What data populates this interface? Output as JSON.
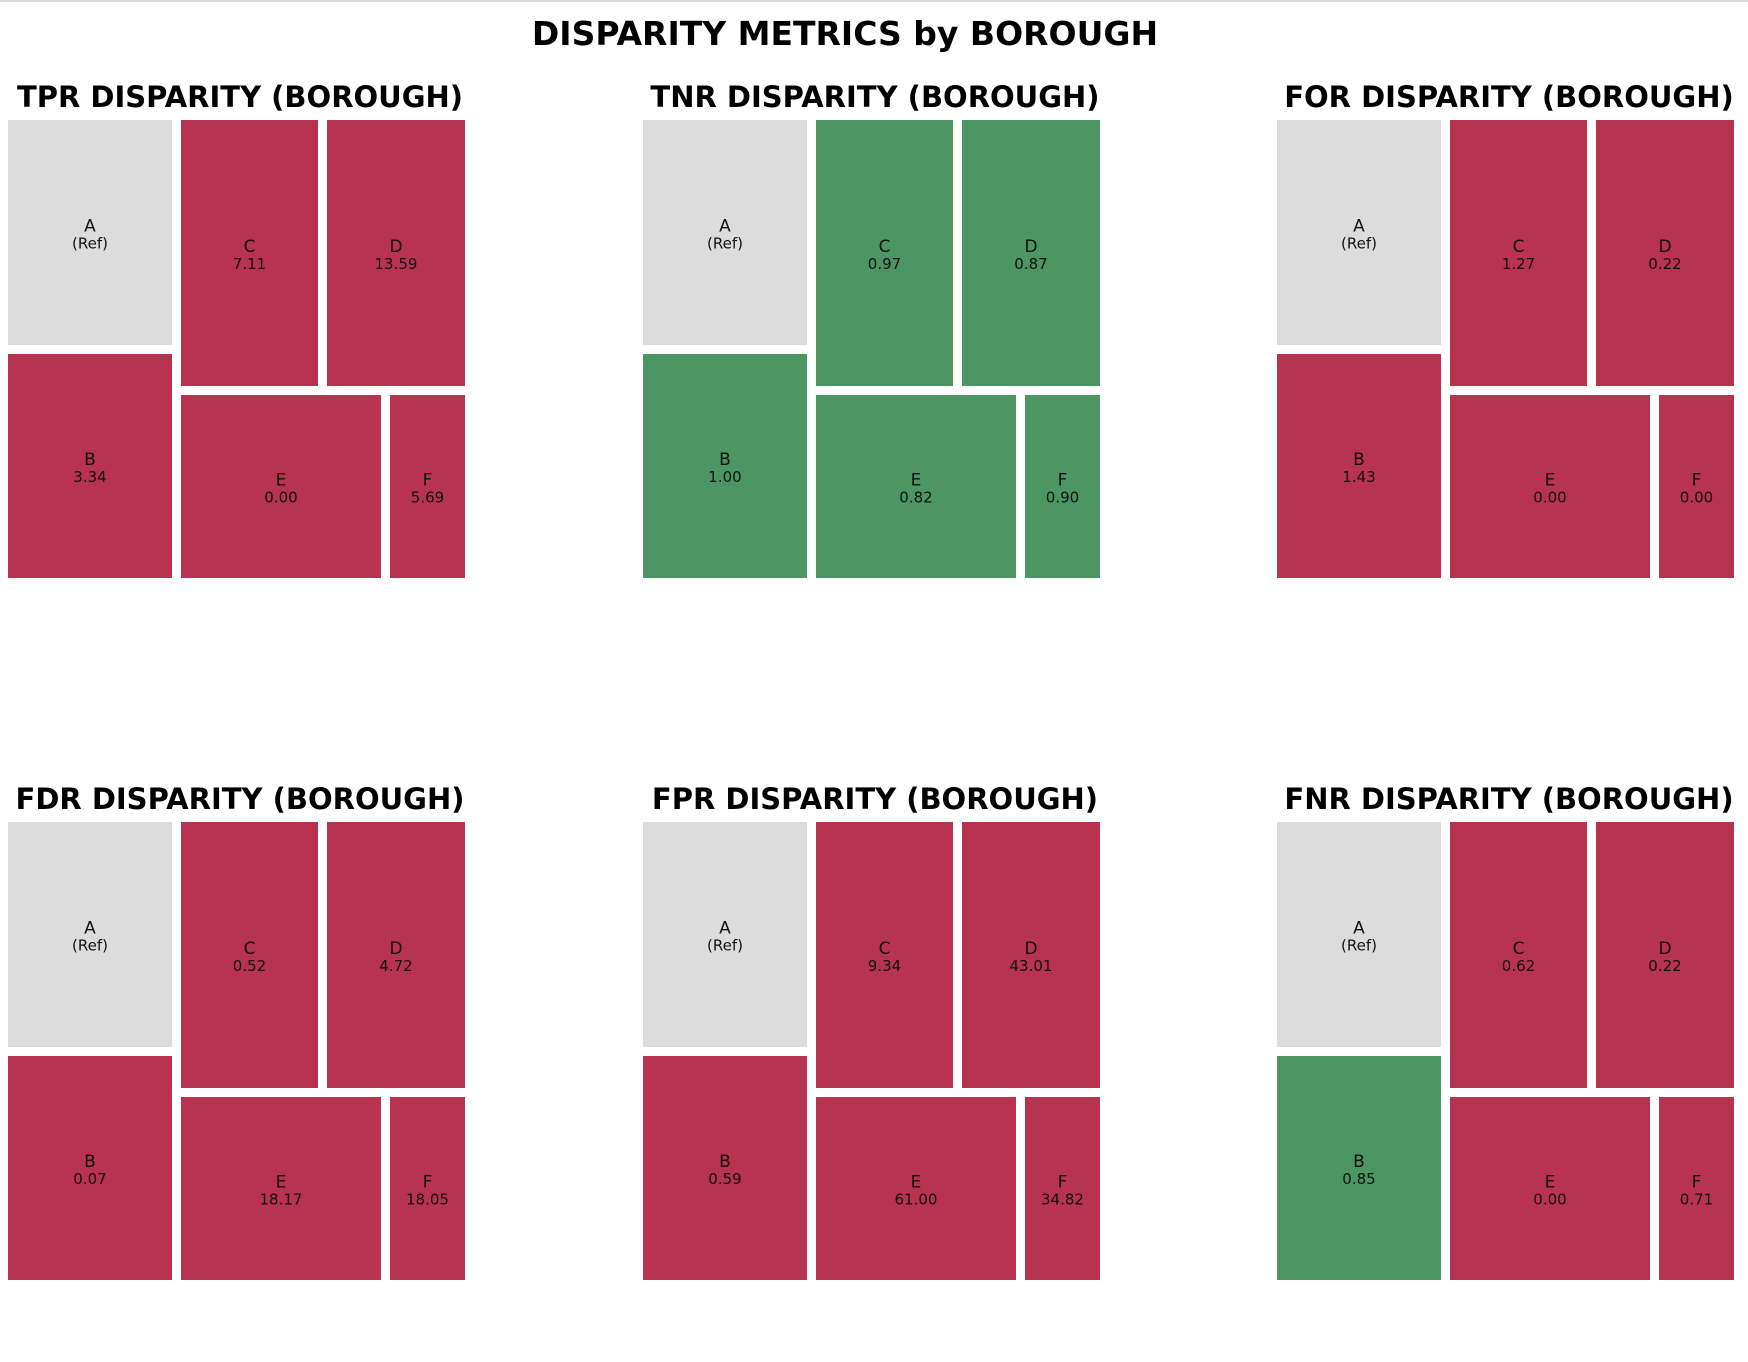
{
  "figure": {
    "suptitle": "DISPARITY METRICS by BOROUGH"
  },
  "colors": {
    "reference": "#dcdcdc",
    "disparity": "#b73350",
    "no_disparity": "#4b9662"
  },
  "chart_data": [
    {
      "type": "treemap",
      "title": "TPR DISPARITY (BOROUGH)",
      "cells": [
        {
          "group": "A",
          "value": "(Ref)",
          "status": "reference"
        },
        {
          "group": "B",
          "value": "3.34",
          "status": "disparity"
        },
        {
          "group": "C",
          "value": "7.11",
          "status": "disparity"
        },
        {
          "group": "D",
          "value": "13.59",
          "status": "disparity"
        },
        {
          "group": "E",
          "value": "0.00",
          "status": "disparity"
        },
        {
          "group": "F",
          "value": "5.69",
          "status": "disparity"
        }
      ]
    },
    {
      "type": "treemap",
      "title": "TNR DISPARITY (BOROUGH)",
      "cells": [
        {
          "group": "A",
          "value": "(Ref)",
          "status": "reference"
        },
        {
          "group": "B",
          "value": "1.00",
          "status": "no_disparity"
        },
        {
          "group": "C",
          "value": "0.97",
          "status": "no_disparity"
        },
        {
          "group": "D",
          "value": "0.87",
          "status": "no_disparity"
        },
        {
          "group": "E",
          "value": "0.82",
          "status": "no_disparity"
        },
        {
          "group": "F",
          "value": "0.90",
          "status": "no_disparity"
        }
      ]
    },
    {
      "type": "treemap",
      "title": "FOR DISPARITY (BOROUGH)",
      "cells": [
        {
          "group": "A",
          "value": "(Ref)",
          "status": "reference"
        },
        {
          "group": "B",
          "value": "1.43",
          "status": "disparity"
        },
        {
          "group": "C",
          "value": "1.27",
          "status": "disparity"
        },
        {
          "group": "D",
          "value": "0.22",
          "status": "disparity"
        },
        {
          "group": "E",
          "value": "0.00",
          "status": "disparity"
        },
        {
          "group": "F",
          "value": "0.00",
          "status": "disparity"
        }
      ]
    },
    {
      "type": "treemap",
      "title": "FDR DISPARITY (BOROUGH)",
      "cells": [
        {
          "group": "A",
          "value": "(Ref)",
          "status": "reference"
        },
        {
          "group": "B",
          "value": "0.07",
          "status": "disparity"
        },
        {
          "group": "C",
          "value": "0.52",
          "status": "disparity"
        },
        {
          "group": "D",
          "value": "4.72",
          "status": "disparity"
        },
        {
          "group": "E",
          "value": "18.17",
          "status": "disparity"
        },
        {
          "group": "F",
          "value": "18.05",
          "status": "disparity"
        }
      ]
    },
    {
      "type": "treemap",
      "title": "FPR DISPARITY (BOROUGH)",
      "cells": [
        {
          "group": "A",
          "value": "(Ref)",
          "status": "reference"
        },
        {
          "group": "B",
          "value": "0.59",
          "status": "disparity"
        },
        {
          "group": "C",
          "value": "9.34",
          "status": "disparity"
        },
        {
          "group": "D",
          "value": "43.01",
          "status": "disparity"
        },
        {
          "group": "E",
          "value": "61.00",
          "status": "disparity"
        },
        {
          "group": "F",
          "value": "34.82",
          "status": "disparity"
        }
      ]
    },
    {
      "type": "treemap",
      "title": "FNR DISPARITY (BOROUGH)",
      "cells": [
        {
          "group": "A",
          "value": "(Ref)",
          "status": "reference"
        },
        {
          "group": "B",
          "value": "0.85",
          "status": "no_disparity"
        },
        {
          "group": "C",
          "value": "0.62",
          "status": "disparity"
        },
        {
          "group": "D",
          "value": "0.22",
          "status": "disparity"
        },
        {
          "group": "E",
          "value": "0.00",
          "status": "disparity"
        },
        {
          "group": "F",
          "value": "0.71",
          "status": "disparity"
        }
      ]
    }
  ]
}
